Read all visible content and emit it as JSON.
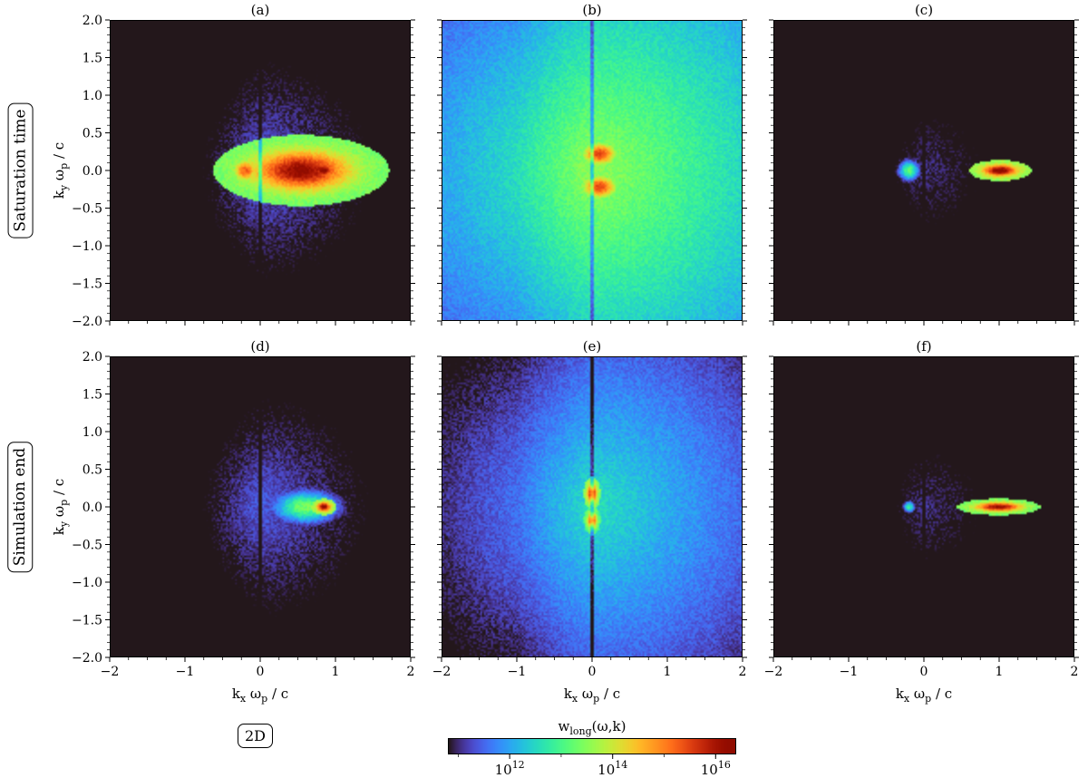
{
  "chart_data": [
    {
      "panel": "(a)",
      "row": 0,
      "col": 0,
      "type": "heatmap",
      "ylabel": "k_y ω_p / c",
      "features": [
        {
          "kx": 0.55,
          "ky": 0.0,
          "amp": 16.3,
          "wx": 0.42,
          "wy": 0.17
        },
        {
          "kx": 0.85,
          "ky": 0.0,
          "amp": 16.6,
          "wx": 0.08,
          "wy": 0.05
        },
        {
          "kx": -0.2,
          "ky": 0.0,
          "amp": 15.3,
          "wx": 0.12,
          "wy": 0.11
        }
      ],
      "background": 11.4
    },
    {
      "panel": "(b)",
      "row": 0,
      "col": 1,
      "type": "heatmap",
      "features": [
        {
          "kx": 0.1,
          "ky": 0.22,
          "amp": 15.6,
          "wx": 0.15,
          "wy": 0.1
        },
        {
          "kx": 0.1,
          "ky": -0.22,
          "amp": 15.6,
          "wx": 0.15,
          "wy": 0.1
        }
      ],
      "background": 13.6
    },
    {
      "panel": "(c)",
      "row": 0,
      "col": 2,
      "type": "heatmap",
      "features": [
        {
          "kx": 1.02,
          "ky": 0.0,
          "amp": 16.5,
          "wx": 0.15,
          "wy": 0.05
        },
        {
          "kx": -0.2,
          "ky": 0.0,
          "amp": 13.2,
          "wx": 0.1,
          "wy": 0.1
        }
      ],
      "background": 11.0
    },
    {
      "panel": "(d)",
      "row": 1,
      "col": 0,
      "type": "heatmap",
      "ylabel": "k_y ω_p / c",
      "features": [
        {
          "kx": 0.85,
          "ky": 0.0,
          "amp": 16.5,
          "wx": 0.06,
          "wy": 0.04
        },
        {
          "kx": 0.6,
          "ky": 0.0,
          "amp": 13.4,
          "wx": 0.3,
          "wy": 0.15
        }
      ],
      "background": 11.4
    },
    {
      "panel": "(e)",
      "row": 1,
      "col": 1,
      "type": "heatmap",
      "features": [
        {
          "kx": 0.0,
          "ky": 0.18,
          "amp": 16.4,
          "wx": 0.04,
          "wy": 0.08
        },
        {
          "kx": 0.0,
          "ky": -0.18,
          "amp": 16.0,
          "wx": 0.04,
          "wy": 0.07
        }
      ],
      "background": 12.6
    },
    {
      "panel": "(f)",
      "row": 1,
      "col": 2,
      "type": "heatmap",
      "features": [
        {
          "kx": 1.0,
          "ky": 0.0,
          "amp": 16.3,
          "wx": 0.2,
          "wy": 0.04
        },
        {
          "kx": -0.2,
          "ky": 0.0,
          "amp": 12.9,
          "wx": 0.06,
          "wy": 0.06
        }
      ],
      "background": 11.0
    }
  ],
  "axes": {
    "x_range": [
      -2,
      2
    ],
    "y_range": [
      -2,
      2
    ],
    "x_ticks": [
      -2,
      -1,
      0,
      1,
      2
    ],
    "y_ticks": [
      -2.0,
      -1.5,
      -1.0,
      -0.5,
      0.0,
      0.5,
      1.0,
      1.5,
      2.0
    ],
    "x_tick_labels": [
      "−2",
      "−1",
      "0",
      "1",
      "2"
    ],
    "y_tick_labels": [
      "−2.0",
      "−1.5",
      "−1.0",
      "−0.5",
      "0.0",
      "0.5",
      "1.0",
      "1.5",
      "2.0"
    ],
    "xlabel": "k_x ω_p / c",
    "ylabel": "k_y ω_p / c"
  },
  "row_labels": [
    "Saturation time",
    "Simulation end"
  ],
  "tag": "2D",
  "colorbar": {
    "label": "w_long(ω,k)",
    "range_log10": [
      10.8,
      16.4
    ],
    "ticks": [
      12,
      14,
      16
    ],
    "colormap": "turbo"
  }
}
